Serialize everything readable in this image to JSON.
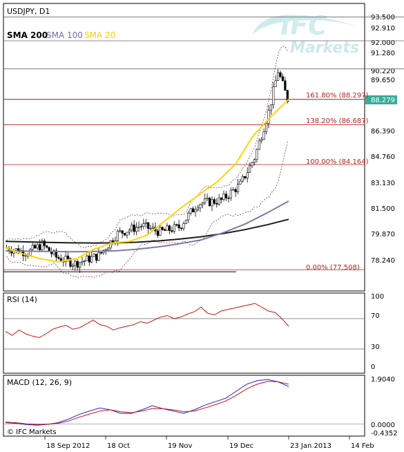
{
  "header": {
    "symbol": "USDJPY, D1",
    "sma200_label": "SMA 200",
    "sma100_label": "SMA 100",
    "sma20_label": "SMA 20",
    "logo_text": "IFC",
    "logo_subtext": "Markets"
  },
  "rsi_label": "RSI (14)",
  "macd_label": "MACD (12, 26, 9)",
  "copyright": "© IFC Markets",
  "colors": {
    "candle": "#000000",
    "sma200": "#1a1a1a",
    "sma100": "#7a7aa8",
    "sma20": "#ffd400",
    "bollinger": "#8b1a1a",
    "fib": "#b22222",
    "current_price_line": "#3aaa99",
    "rsi": "#cc1111",
    "macd_line": "#2222cc",
    "signal_line": "#cc1111",
    "logo": "#d6efef"
  },
  "chart_data": [
    {
      "type": "candlestick",
      "title": "USDJPY, D1",
      "ylim": [
        77.2,
        93.8
      ],
      "price_ticks": [
        "93.500",
        "92.910",
        "92.000",
        "91.280",
        "90.220",
        "89.650",
        "88.279",
        "86.390",
        "84.760",
        "83.130",
        "81.500",
        "79.870",
        "78.240"
      ],
      "date_labels": [
        "18 Sep 2012",
        "18 Oct",
        "19 Nov",
        "19 Dec",
        "23 Jan 2013",
        "14 Feb"
      ],
      "reference_lines": [
        "93.500",
        "92.000",
        "90.220"
      ],
      "current_price": "88.279",
      "fib_levels": [
        {
          "label": "161.80% (88.297)",
          "value": 88.297
        },
        {
          "label": "138.20% (86.687)",
          "value": 86.687
        },
        {
          "label": "100.00% (84.164)",
          "value": 84.164
        },
        {
          "label": "0.00% (77.508)",
          "value": 77.508
        }
      ],
      "series": [
        {
          "name": "SMA 200",
          "values": [
            79.3,
            79.27,
            79.24,
            79.21,
            79.2,
            79.21,
            79.25,
            79.33,
            79.45,
            79.6,
            79.8,
            80.05,
            80.35,
            80.7
          ]
        },
        {
          "name": "SMA 100",
          "values": [
            78.7,
            78.68,
            78.66,
            78.65,
            78.66,
            78.7,
            78.8,
            78.95,
            79.15,
            79.4,
            79.85,
            80.4,
            81.1,
            81.85
          ]
        },
        {
          "name": "SMA 20",
          "values": [
            78.9,
            78.5,
            78.2,
            78.0,
            78.2,
            78.8,
            79.2,
            79.3,
            79.7,
            80.6,
            81.5,
            82.3,
            83.1,
            84.2,
            86.0,
            87.2,
            88.3
          ]
        }
      ]
    },
    {
      "type": "line",
      "title": "RSI (14)",
      "ylim": [
        0,
        100
      ],
      "y_ticks": [
        "100",
        "70",
        "30",
        "0"
      ],
      "levels": [
        70,
        30
      ],
      "series": [
        {
          "name": "RSI (14)",
          "values": [
            53,
            48,
            55,
            50,
            47,
            45,
            50,
            56,
            59,
            61,
            56,
            58,
            63,
            68,
            62,
            60,
            55,
            58,
            60,
            62,
            66,
            64,
            68,
            72,
            74,
            70,
            72,
            76,
            79,
            85,
            77,
            75,
            80,
            82,
            84,
            86,
            88,
            90,
            85,
            80,
            78,
            70,
            60
          ]
        }
      ]
    },
    {
      "type": "line",
      "title": "MACD (12, 26, 9)",
      "ylim": [
        -0.4352,
        1.904
      ],
      "y_ticks": [
        "1.9040",
        "0.0000",
        "-0.4352"
      ],
      "series": [
        {
          "name": "MACD",
          "values": [
            0.05,
            0.02,
            -0.03,
            -0.06,
            -0.02,
            0.05,
            0.2,
            0.4,
            0.55,
            0.68,
            0.6,
            0.45,
            0.45,
            0.6,
            0.78,
            0.65,
            0.55,
            0.45,
            0.6,
            0.8,
            0.95,
            1.1,
            1.4,
            1.7,
            1.85,
            1.9,
            1.8,
            1.6
          ]
        },
        {
          "name": "Signal",
          "values": [
            0.08,
            0.05,
            0.0,
            -0.03,
            -0.02,
            0.02,
            0.12,
            0.28,
            0.42,
            0.55,
            0.6,
            0.52,
            0.48,
            0.55,
            0.66,
            0.65,
            0.6,
            0.52,
            0.55,
            0.68,
            0.82,
            0.98,
            1.22,
            1.5,
            1.7,
            1.82,
            1.8,
            1.7
          ]
        }
      ]
    }
  ]
}
